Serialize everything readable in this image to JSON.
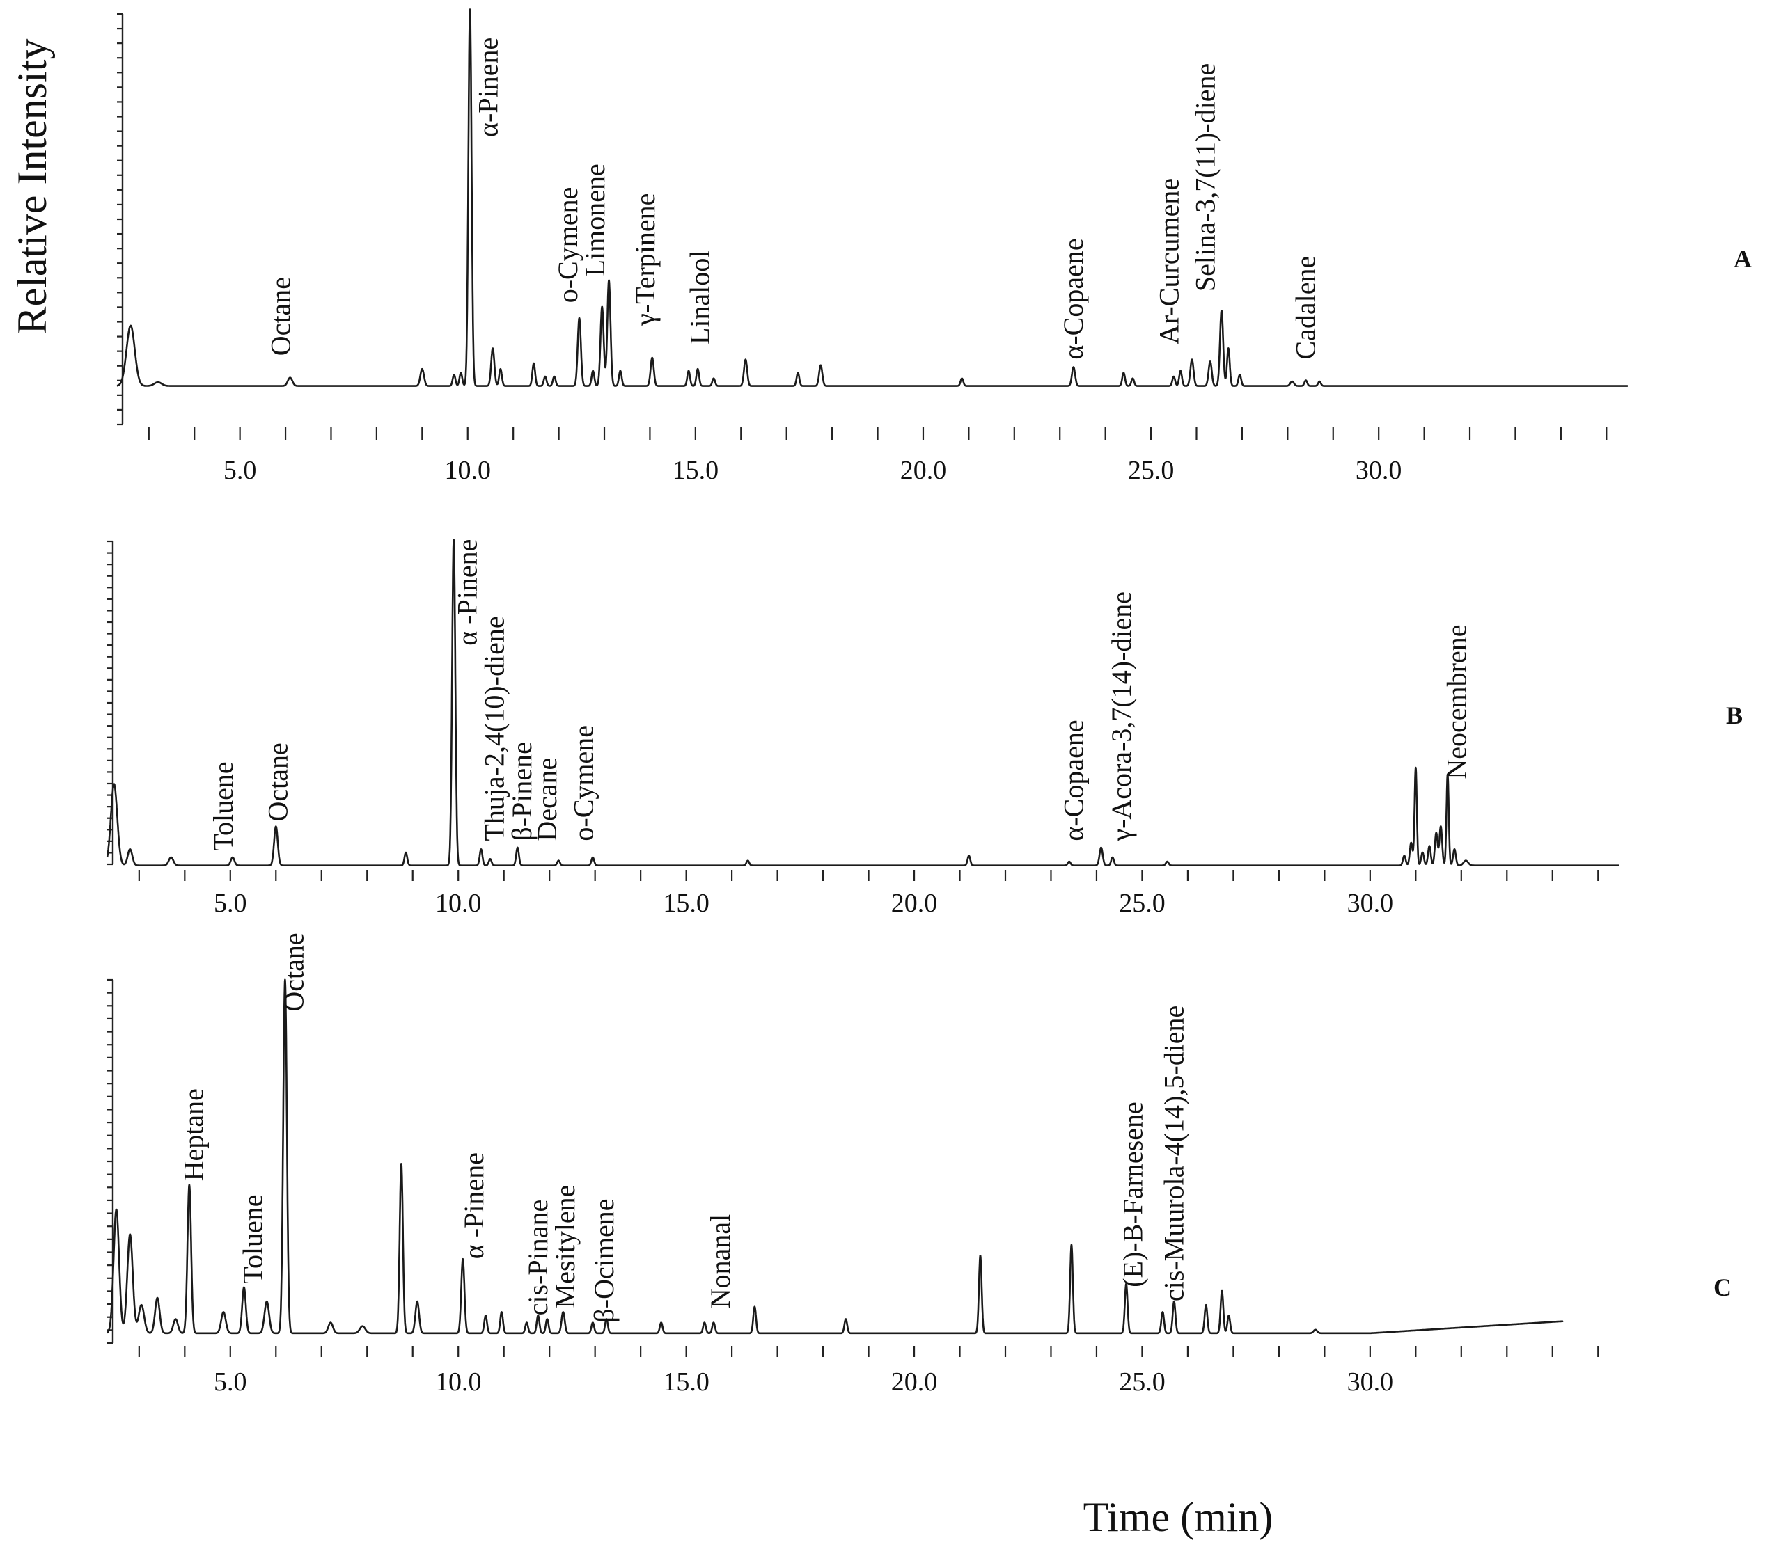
{
  "chart_data": {
    "type": "line",
    "ylabel": "Relative Intensity",
    "xlabel": "Time (min)",
    "xlim": [
      2.3,
      35.5
    ],
    "xticks": [
      5.0,
      10.0,
      15.0,
      20.0,
      25.0,
      30.0
    ],
    "tick_labels": [
      "5.0",
      "10.0",
      "15.0",
      "20.0",
      "25.0",
      "30.0"
    ],
    "panels": [
      {
        "letter": "A",
        "baseline": 0.01,
        "peaks": [
          {
            "t": 2.6,
            "h": 0.16,
            "w": 0.09
          },
          {
            "t": 3.2,
            "h": 0.01,
            "w": 0.08
          },
          {
            "t": 6.1,
            "h": 0.022,
            "w": 0.05
          },
          {
            "t": 9.0,
            "h": 0.045,
            "w": 0.04
          },
          {
            "t": 9.7,
            "h": 0.03,
            "w": 0.03
          },
          {
            "t": 9.85,
            "h": 0.035,
            "w": 0.03
          },
          {
            "t": 10.05,
            "h": 1.0,
            "w": 0.035
          },
          {
            "t": 10.55,
            "h": 0.1,
            "w": 0.035
          },
          {
            "t": 10.72,
            "h": 0.045,
            "w": 0.03
          },
          {
            "t": 11.45,
            "h": 0.06,
            "w": 0.03
          },
          {
            "t": 11.7,
            "h": 0.025,
            "w": 0.03
          },
          {
            "t": 11.9,
            "h": 0.025,
            "w": 0.03
          },
          {
            "t": 12.45,
            "h": 0.18,
            "w": 0.035
          },
          {
            "t": 12.75,
            "h": 0.04,
            "w": 0.03
          },
          {
            "t": 12.95,
            "h": 0.21,
            "w": 0.035
          },
          {
            "t": 13.1,
            "h": 0.28,
            "w": 0.035
          },
          {
            "t": 13.35,
            "h": 0.04,
            "w": 0.03
          },
          {
            "t": 14.05,
            "h": 0.075,
            "w": 0.035
          },
          {
            "t": 14.85,
            "h": 0.04,
            "w": 0.03
          },
          {
            "t": 15.05,
            "h": 0.045,
            "w": 0.03
          },
          {
            "t": 15.4,
            "h": 0.02,
            "w": 0.03
          },
          {
            "t": 16.1,
            "h": 0.07,
            "w": 0.035
          },
          {
            "t": 17.25,
            "h": 0.035,
            "w": 0.03
          },
          {
            "t": 17.75,
            "h": 0.055,
            "w": 0.035
          },
          {
            "t": 20.85,
            "h": 0.02,
            "w": 0.03
          },
          {
            "t": 23.3,
            "h": 0.05,
            "w": 0.035
          },
          {
            "t": 24.4,
            "h": 0.035,
            "w": 0.03
          },
          {
            "t": 24.6,
            "h": 0.02,
            "w": 0.03
          },
          {
            "t": 25.5,
            "h": 0.025,
            "w": 0.03
          },
          {
            "t": 25.65,
            "h": 0.04,
            "w": 0.03
          },
          {
            "t": 25.9,
            "h": 0.07,
            "w": 0.035
          },
          {
            "t": 26.3,
            "h": 0.065,
            "w": 0.035
          },
          {
            "t": 26.55,
            "h": 0.2,
            "w": 0.035
          },
          {
            "t": 26.7,
            "h": 0.1,
            "w": 0.03
          },
          {
            "t": 26.95,
            "h": 0.03,
            "w": 0.03
          },
          {
            "t": 28.1,
            "h": 0.012,
            "w": 0.04
          },
          {
            "t": 28.4,
            "h": 0.015,
            "w": 0.03
          },
          {
            "t": 28.7,
            "h": 0.012,
            "w": 0.03
          }
        ],
        "labels": [
          {
            "text": "Octane",
            "t": 6.1,
            "y": 0.09
          },
          {
            "text": "α-Pinene",
            "t": 10.65,
            "y": 0.67
          },
          {
            "text": "o-Cymene",
            "t": 12.4,
            "y": 0.23
          },
          {
            "text": "Limonene",
            "t": 13.0,
            "y": 0.3
          },
          {
            "text": "γ-Terpinene",
            "t": 14.1,
            "y": 0.17
          },
          {
            "text": "Linalool",
            "t": 15.3,
            "y": 0.12
          },
          {
            "text": "α-Copaene",
            "t": 23.5,
            "y": 0.08
          },
          {
            "text": "Ar-Curcumene",
            "t": 25.6,
            "y": 0.12
          },
          {
            "text": "Selina-3,7(11)-diene",
            "t": 26.4,
            "y": 0.26
          },
          {
            "text": "Cadalene",
            "t": 28.6,
            "y": 0.08
          }
        ]
      },
      {
        "letter": "B",
        "baseline": 0.005,
        "peaks": [
          {
            "t": 2.45,
            "h": 0.25,
            "w": 0.07
          },
          {
            "t": 2.8,
            "h": 0.05,
            "w": 0.05
          },
          {
            "t": 3.7,
            "h": 0.025,
            "w": 0.05
          },
          {
            "t": 5.05,
            "h": 0.025,
            "w": 0.04
          },
          {
            "t": 6.0,
            "h": 0.12,
            "w": 0.04
          },
          {
            "t": 8.85,
            "h": 0.04,
            "w": 0.03
          },
          {
            "t": 9.9,
            "h": 1.0,
            "w": 0.035
          },
          {
            "t": 10.5,
            "h": 0.05,
            "w": 0.03
          },
          {
            "t": 10.7,
            "h": 0.02,
            "w": 0.03
          },
          {
            "t": 11.3,
            "h": 0.055,
            "w": 0.03
          },
          {
            "t": 12.2,
            "h": 0.015,
            "w": 0.03
          },
          {
            "t": 12.95,
            "h": 0.025,
            "w": 0.03
          },
          {
            "t": 16.35,
            "h": 0.015,
            "w": 0.03
          },
          {
            "t": 21.2,
            "h": 0.03,
            "w": 0.03
          },
          {
            "t": 23.4,
            "h": 0.012,
            "w": 0.03
          },
          {
            "t": 24.1,
            "h": 0.055,
            "w": 0.035
          },
          {
            "t": 24.35,
            "h": 0.025,
            "w": 0.03
          },
          {
            "t": 25.55,
            "h": 0.012,
            "w": 0.03
          },
          {
            "t": 30.75,
            "h": 0.03,
            "w": 0.03
          },
          {
            "t": 30.9,
            "h": 0.07,
            "w": 0.03
          },
          {
            "t": 31.0,
            "h": 0.3,
            "w": 0.025
          },
          {
            "t": 31.15,
            "h": 0.04,
            "w": 0.03
          },
          {
            "t": 31.3,
            "h": 0.06,
            "w": 0.03
          },
          {
            "t": 31.45,
            "h": 0.1,
            "w": 0.03
          },
          {
            "t": 31.55,
            "h": 0.12,
            "w": 0.03
          },
          {
            "t": 31.7,
            "h": 0.28,
            "w": 0.025
          },
          {
            "t": 31.85,
            "h": 0.05,
            "w": 0.03
          },
          {
            "t": 32.1,
            "h": 0.015,
            "w": 0.05
          }
        ],
        "labels": [
          {
            "text": "Toluene",
            "t": 5.05,
            "y": 0.05
          },
          {
            "text": "Octane",
            "t": 6.25,
            "y": 0.14
          },
          {
            "text": "α -Pinene",
            "t": 10.4,
            "y": 0.68
          },
          {
            "text": "Thuja-2,4(10)-diene",
            "t": 11.0,
            "y": 0.08
          },
          {
            "text": "β-Pinene",
            "t": 11.6,
            "y": 0.08
          },
          {
            "text": "Decane",
            "t": 12.15,
            "y": 0.08
          },
          {
            "text": "o-Cymene",
            "t": 12.95,
            "y": 0.08
          },
          {
            "text": "α-Copaene",
            "t": 23.7,
            "y": 0.08
          },
          {
            "text": "γ-Acora-3,7(14)-diene",
            "t": 24.75,
            "y": 0.08
          },
          {
            "text": "Neocembrene",
            "t": 32.1,
            "y": 0.27
          }
        ]
      },
      {
        "letter": "C",
        "baseline": 0.02,
        "peaks": [
          {
            "t": 2.5,
            "h": 0.35,
            "w": 0.06
          },
          {
            "t": 2.8,
            "h": 0.28,
            "w": 0.06
          },
          {
            "t": 3.05,
            "h": 0.08,
            "w": 0.06
          },
          {
            "t": 3.4,
            "h": 0.1,
            "w": 0.05
          },
          {
            "t": 3.8,
            "h": 0.04,
            "w": 0.05
          },
          {
            "t": 4.1,
            "h": 0.42,
            "w": 0.04
          },
          {
            "t": 4.85,
            "h": 0.06,
            "w": 0.05
          },
          {
            "t": 5.3,
            "h": 0.13,
            "w": 0.04
          },
          {
            "t": 5.8,
            "h": 0.09,
            "w": 0.05
          },
          {
            "t": 6.2,
            "h": 1.0,
            "w": 0.04
          },
          {
            "t": 7.2,
            "h": 0.03,
            "w": 0.05
          },
          {
            "t": 7.9,
            "h": 0.02,
            "w": 0.06
          },
          {
            "t": 8.75,
            "h": 0.48,
            "w": 0.035
          },
          {
            "t": 9.1,
            "h": 0.09,
            "w": 0.04
          },
          {
            "t": 10.1,
            "h": 0.21,
            "w": 0.035
          },
          {
            "t": 10.6,
            "h": 0.05,
            "w": 0.03
          },
          {
            "t": 10.95,
            "h": 0.06,
            "w": 0.03
          },
          {
            "t": 11.5,
            "h": 0.03,
            "w": 0.03
          },
          {
            "t": 11.75,
            "h": 0.05,
            "w": 0.03
          },
          {
            "t": 11.95,
            "h": 0.04,
            "w": 0.03
          },
          {
            "t": 12.3,
            "h": 0.06,
            "w": 0.035
          },
          {
            "t": 12.95,
            "h": 0.03,
            "w": 0.03
          },
          {
            "t": 13.25,
            "h": 0.04,
            "w": 0.03
          },
          {
            "t": 14.45,
            "h": 0.03,
            "w": 0.03
          },
          {
            "t": 15.4,
            "h": 0.03,
            "w": 0.03
          },
          {
            "t": 15.6,
            "h": 0.03,
            "w": 0.03
          },
          {
            "t": 16.5,
            "h": 0.075,
            "w": 0.03
          },
          {
            "t": 18.5,
            "h": 0.04,
            "w": 0.03
          },
          {
            "t": 21.45,
            "h": 0.22,
            "w": 0.03
          },
          {
            "t": 23.45,
            "h": 0.25,
            "w": 0.03
          },
          {
            "t": 24.65,
            "h": 0.14,
            "w": 0.03
          },
          {
            "t": 25.45,
            "h": 0.06,
            "w": 0.03
          },
          {
            "t": 25.7,
            "h": 0.09,
            "w": 0.03
          },
          {
            "t": 26.4,
            "h": 0.08,
            "w": 0.03
          },
          {
            "t": 26.75,
            "h": 0.12,
            "w": 0.03
          },
          {
            "t": 26.9,
            "h": 0.05,
            "w": 0.03
          },
          {
            "t": 28.8,
            "h": 0.01,
            "w": 0.04
          }
        ],
        "labels": [
          {
            "text": "Heptane",
            "t": 4.4,
            "y": 0.45
          },
          {
            "text": "Toluene",
            "t": 5.7,
            "y": 0.16
          },
          {
            "text": "Octane",
            "t": 6.6,
            "y": 0.93
          },
          {
            "text": "α -Pinene",
            "t": 10.55,
            "y": 0.23
          },
          {
            "text": "cis-Pinane",
            "t": 11.95,
            "y": 0.07
          },
          {
            "text": "Mesitylene",
            "t": 12.55,
            "y": 0.09
          },
          {
            "text": "β-Ocimene",
            "t": 13.4,
            "y": 0.05
          },
          {
            "text": "Nonanal",
            "t": 15.95,
            "y": 0.09
          },
          {
            "text": "(E)-B-Farnesene",
            "t": 25.0,
            "y": 0.15
          },
          {
            "text": "cis-Muurola-4(14),5-diene",
            "t": 25.9,
            "y": 0.11
          }
        ]
      }
    ]
  }
}
